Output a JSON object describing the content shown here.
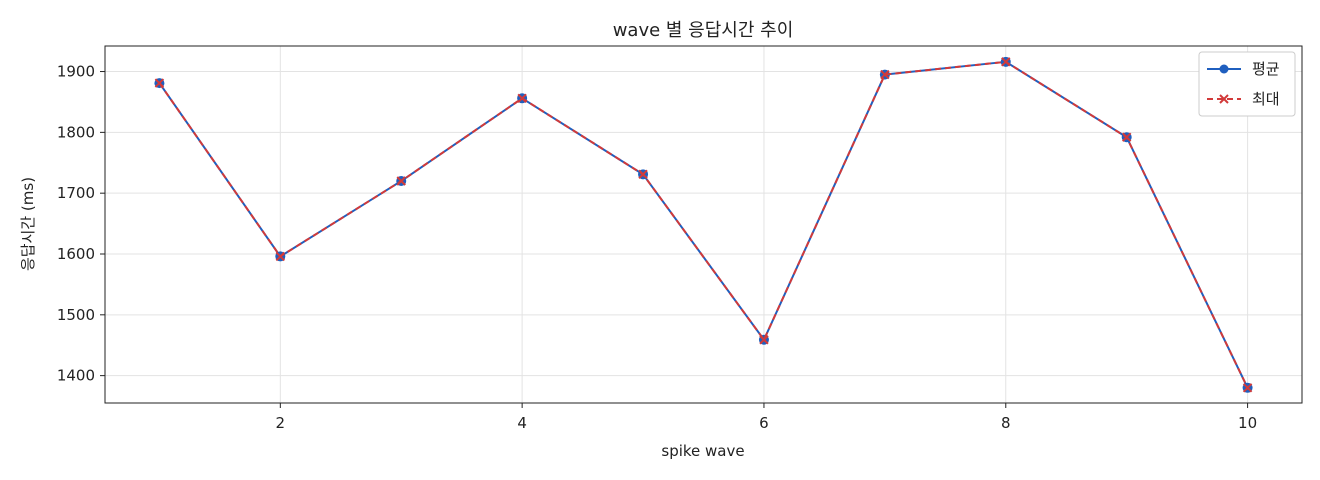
{
  "chart_data": {
    "type": "line",
    "title": "wave 별 응답시간 추이",
    "xlabel": "spike wave",
    "ylabel": "응답시간 (ms)",
    "x": [
      1,
      2,
      3,
      4,
      5,
      6,
      7,
      8,
      9,
      10
    ],
    "xlim": [
      0.55,
      10.45
    ],
    "ylim": [
      1355,
      1942
    ],
    "xticks": [
      2,
      4,
      6,
      8,
      10
    ],
    "yticks": [
      1400,
      1500,
      1600,
      1700,
      1800,
      1900
    ],
    "grid": true,
    "legend_position": "top-right",
    "series": [
      {
        "name": "평균",
        "values": [
          1881,
          1596,
          1720,
          1856,
          1731,
          1459,
          1895,
          1916,
          1792,
          1380
        ],
        "color": "#1f5fbf",
        "marker": "circle",
        "line_style": "solid"
      },
      {
        "name": "최대",
        "values": [
          1881,
          1596,
          1720,
          1856,
          1731,
          1459,
          1895,
          1916,
          1792,
          1380
        ],
        "color": "#d23a3a",
        "marker": "x",
        "line_style": "dashed"
      }
    ]
  }
}
